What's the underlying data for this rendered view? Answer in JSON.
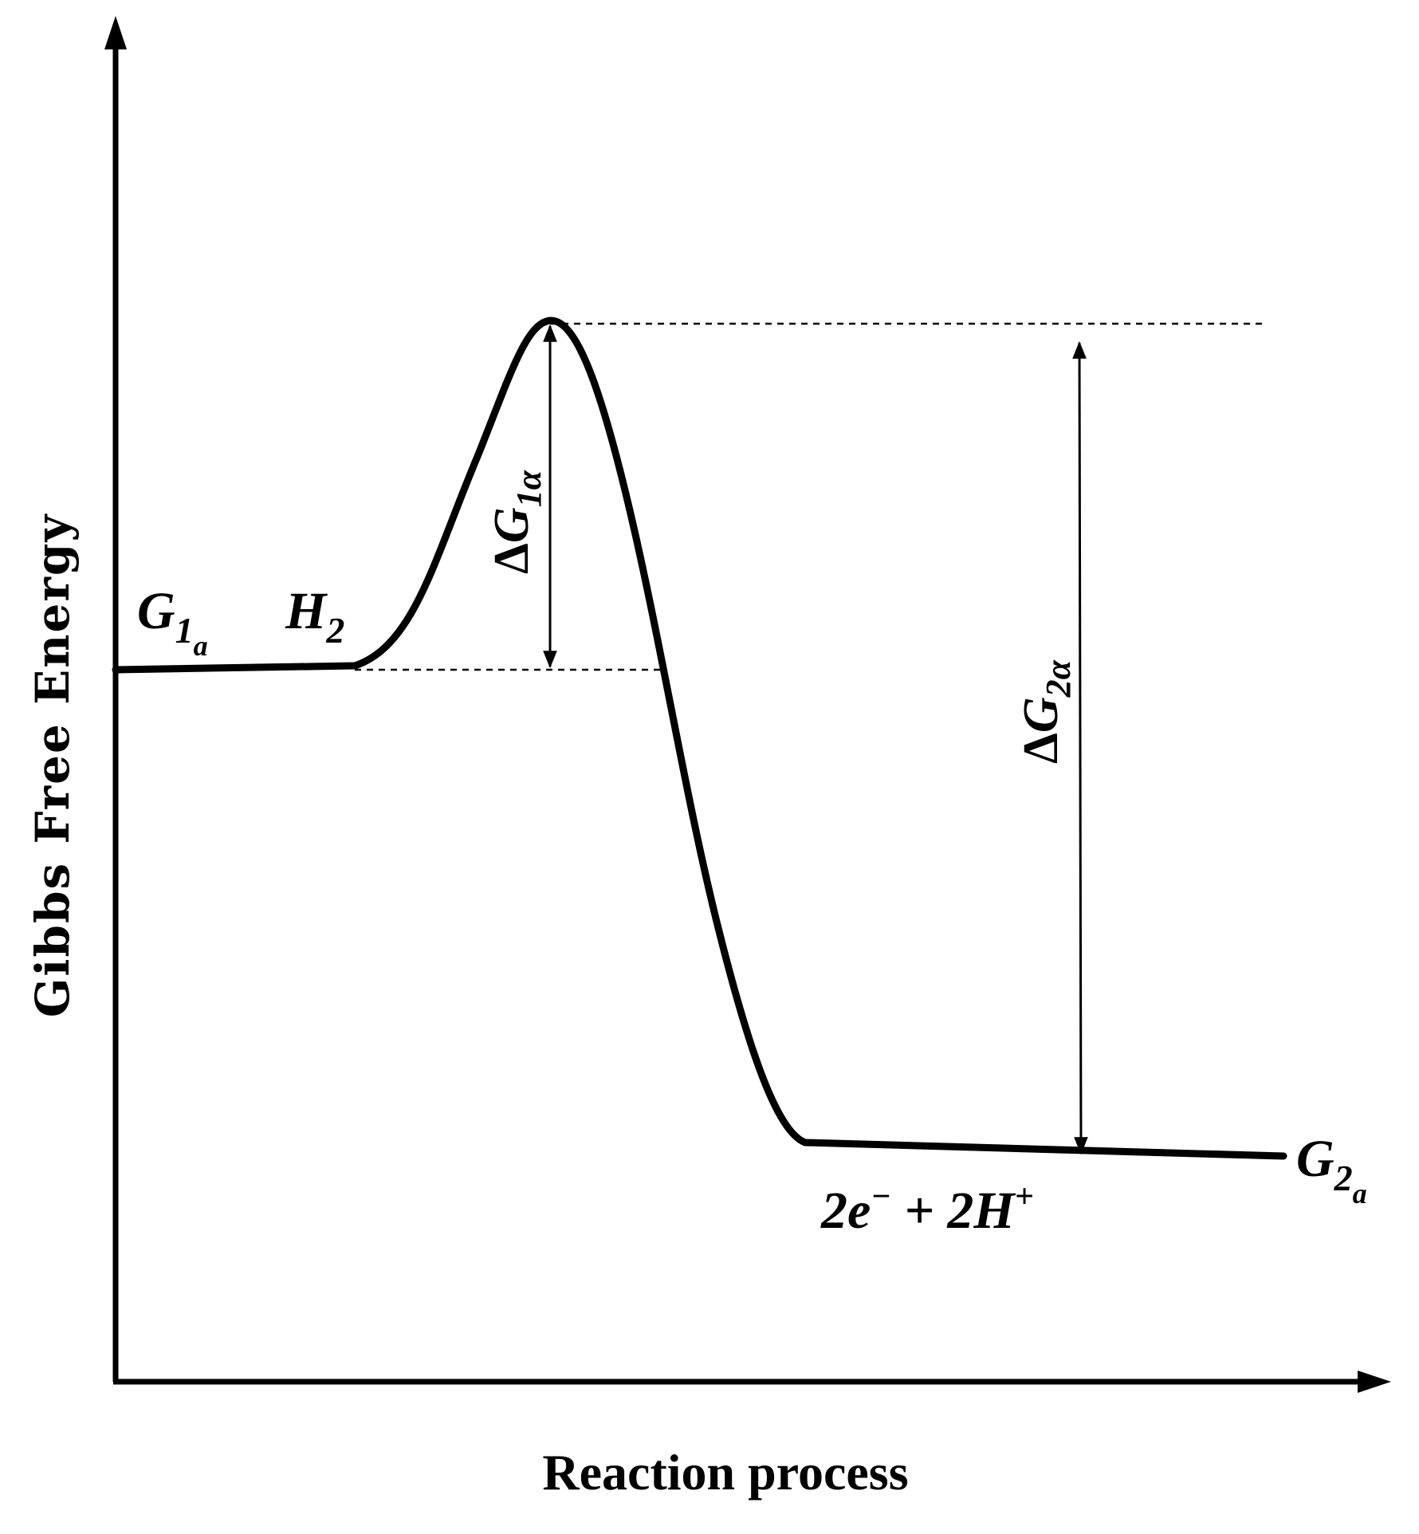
{
  "axes": {
    "y_label": "Gibbs Free Energy",
    "x_label": "Reaction process"
  },
  "labels": {
    "initial_state": {
      "symbol": "G",
      "sub": "1",
      "subsub": "a"
    },
    "reactant": {
      "symbol": "H",
      "sub": "2"
    },
    "final_state": {
      "symbol": "G",
      "sub": "2",
      "subsub": "a"
    },
    "products": {
      "part1": "2e",
      "sup1": "−",
      "plus": " + 2H",
      "sup2": "+"
    },
    "activation_energy": {
      "delta": "Δ",
      "symbol": "G",
      "sub": "1",
      "subsub": "α"
    },
    "reaction_energy": {
      "delta": "Δ",
      "symbol": "G",
      "sub": "2",
      "subsub": "α"
    }
  },
  "colors": {
    "ink": "#000000",
    "background": "#ffffff"
  }
}
